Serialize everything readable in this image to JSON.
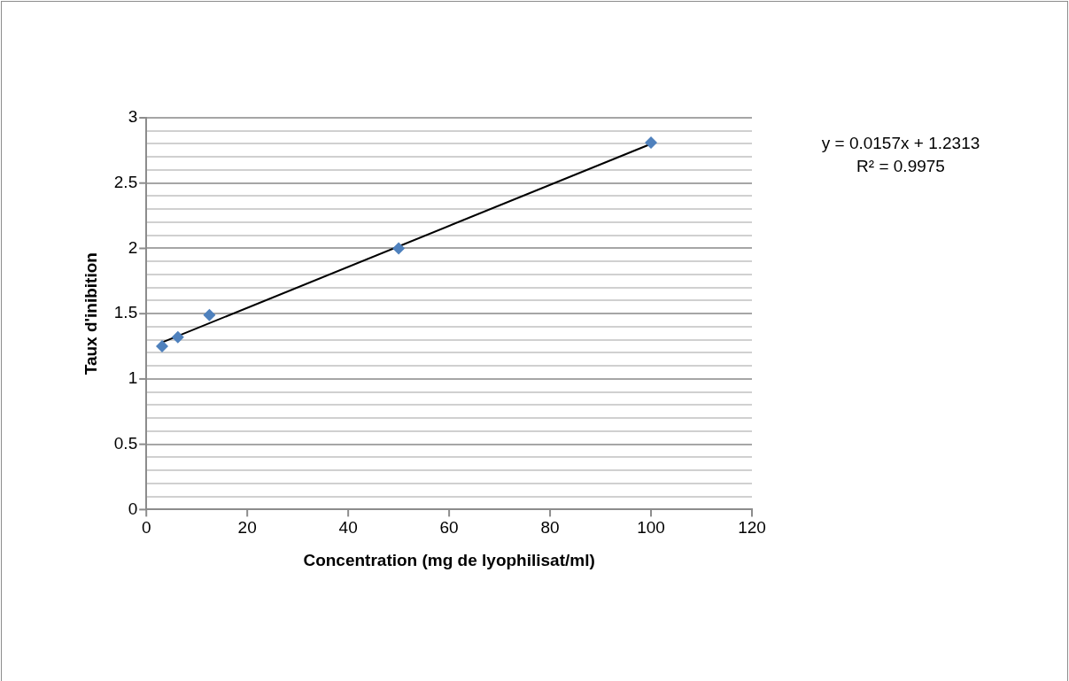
{
  "chart_data": {
    "type": "scatter",
    "xlabel": "Concentration (mg de lyophilisat/ml)",
    "ylabel": "Taux d'inibition",
    "series": [
      {
        "color": "#4f81bd",
        "marker": "diamond",
        "x": [
          3.125,
          6.25,
          12.5,
          50,
          100
        ],
        "values": [
          1.25,
          1.32,
          1.49,
          2.0,
          2.81
        ]
      },
      {
        "type": "line",
        "color": "#000000",
        "marker": "none",
        "line_style": "solid",
        "x": [
          3.125,
          100
        ],
        "values": [
          1.28,
          2.8
        ]
      }
    ],
    "xlim": [
      0,
      120
    ],
    "xticks": [
      0,
      20,
      40,
      60,
      80,
      100,
      120
    ],
    "ylim": [
      0,
      3
    ],
    "yticks": [
      0,
      {
        "value": 0.1,
        "label": null
      },
      {
        "value": 0.2,
        "label": null
      },
      {
        "value": 0.3,
        "label": null
      },
      {
        "value": 0.4,
        "label": null
      },
      0.5,
      {
        "value": 0.6,
        "label": null
      },
      {
        "value": 0.7,
        "label": null
      },
      {
        "value": 0.8,
        "label": null
      },
      {
        "value": 0.9,
        "label": null
      },
      1,
      {
        "value": 1.1,
        "label": null
      },
      {
        "value": 1.2,
        "label": null
      },
      {
        "value": 1.3,
        "label": null
      },
      {
        "value": 1.4,
        "label": null
      },
      1.5,
      {
        "value": 1.6,
        "label": null
      },
      {
        "value": 1.7,
        "label": null
      },
      {
        "value": 1.8,
        "label": null
      },
      {
        "value": 1.9,
        "label": null
      },
      2,
      {
        "value": 2.1,
        "label": null
      },
      {
        "value": 2.2,
        "label": null
      },
      {
        "value": 2.3,
        "label": null
      },
      {
        "value": 2.4,
        "label": null
      },
      2.5,
      {
        "value": 2.6,
        "label": null
      },
      {
        "value": 2.7,
        "label": null
      },
      {
        "value": 2.8,
        "label": null
      },
      {
        "value": 2.9,
        "label": null
      },
      3
    ],
    "grid": "y",
    "legend": false,
    "annotations": [
      "y = 0.0157x + 1.2313",
      "R² = 0.9975"
    ]
  }
}
